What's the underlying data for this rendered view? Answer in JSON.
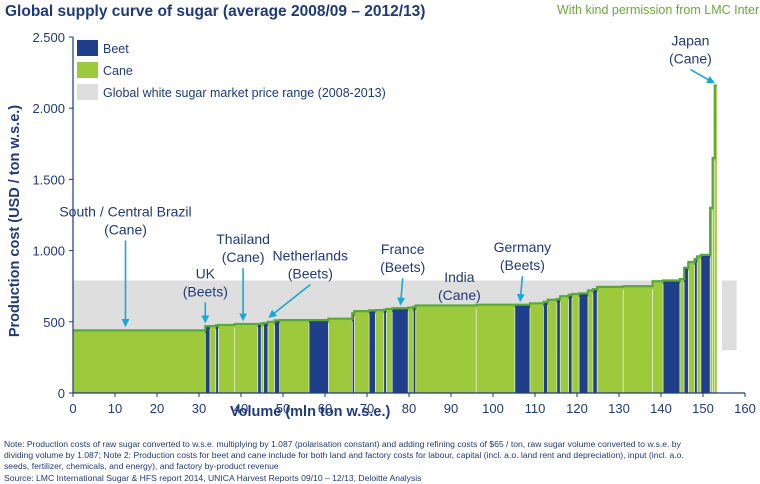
{
  "chart_data": {
    "type": "bar",
    "subtype": "supply-curve",
    "title": "Global supply curve of sugar (average 2008/09 – 2012/13)",
    "permission": "With kind permission from LMC International",
    "xlabel": "Volume (mln ton w.s.e.)",
    "ylabel": "Production cost (USD / ton w.s.e.)",
    "xlim": [
      0,
      160
    ],
    "ylim": [
      0,
      2500
    ],
    "x_ticks": [
      0,
      10,
      20,
      30,
      40,
      50,
      60,
      70,
      80,
      90,
      100,
      110,
      120,
      130,
      140,
      150,
      160
    ],
    "y_ticks": [
      0,
      500,
      1000,
      1500,
      2000,
      2500
    ],
    "y_tick_labels": [
      "0",
      "500",
      "1.000",
      "1.500",
      "2.000",
      "2.500"
    ],
    "price_range": {
      "label": "Global white sugar market price range (2008-2013)",
      "low": 300,
      "high": 790
    },
    "colors": {
      "beet": "#1f3f8a",
      "cane": "#9dc93c",
      "price_band": "#dedede",
      "curve": "#5aa83c",
      "text": "#1f3a7a",
      "permission": "#6aa83a"
    },
    "legend": [
      {
        "key": "beet",
        "label": "Beet"
      },
      {
        "key": "cane",
        "label": "Cane"
      },
      {
        "key": "price_band",
        "label": "Global white sugar market price range (2008-2013)"
      }
    ],
    "segments": [
      {
        "start": 0,
        "end": 31.5,
        "cost": 440,
        "type": "cane"
      },
      {
        "start": 31.5,
        "end": 32.6,
        "cost": 470,
        "type": "beet"
      },
      {
        "start": 32.6,
        "end": 34,
        "cost": 470,
        "type": "cane"
      },
      {
        "start": 34,
        "end": 34.6,
        "cost": 475,
        "type": "beet"
      },
      {
        "start": 34.6,
        "end": 38.5,
        "cost": 478,
        "type": "cane"
      },
      {
        "start": 38.5,
        "end": 44,
        "cost": 485,
        "type": "cane"
      },
      {
        "start": 44,
        "end": 44.8,
        "cost": 485,
        "type": "beet"
      },
      {
        "start": 44.8,
        "end": 45.4,
        "cost": 488,
        "type": "cane"
      },
      {
        "start": 45.4,
        "end": 46.4,
        "cost": 492,
        "type": "beet"
      },
      {
        "start": 46.4,
        "end": 48,
        "cost": 500,
        "type": "cane"
      },
      {
        "start": 48,
        "end": 49.2,
        "cost": 510,
        "type": "beet"
      },
      {
        "start": 49.2,
        "end": 56.2,
        "cost": 512,
        "type": "cane"
      },
      {
        "start": 56.2,
        "end": 60.8,
        "cost": 512,
        "type": "beet"
      },
      {
        "start": 60.8,
        "end": 66.5,
        "cost": 522,
        "type": "cane"
      },
      {
        "start": 66.5,
        "end": 67,
        "cost": 560,
        "type": "beet"
      },
      {
        "start": 67,
        "end": 70.5,
        "cost": 575,
        "type": "cane"
      },
      {
        "start": 70.5,
        "end": 72,
        "cost": 580,
        "type": "beet"
      },
      {
        "start": 72,
        "end": 74,
        "cost": 582,
        "type": "cane"
      },
      {
        "start": 74,
        "end": 74.6,
        "cost": 585,
        "type": "beet"
      },
      {
        "start": 74.6,
        "end": 76,
        "cost": 590,
        "type": "cane"
      },
      {
        "start": 76,
        "end": 79.8,
        "cost": 595,
        "type": "beet"
      },
      {
        "start": 79.8,
        "end": 81,
        "cost": 600,
        "type": "cane"
      },
      {
        "start": 81,
        "end": 81.6,
        "cost": 605,
        "type": "beet"
      },
      {
        "start": 81.6,
        "end": 96,
        "cost": 615,
        "type": "cane"
      },
      {
        "start": 96,
        "end": 105.2,
        "cost": 620,
        "type": "cane"
      },
      {
        "start": 105.2,
        "end": 108.8,
        "cost": 620,
        "type": "beet"
      },
      {
        "start": 108.8,
        "end": 112,
        "cost": 630,
        "type": "cane"
      },
      {
        "start": 112,
        "end": 113,
        "cost": 640,
        "type": "beet"
      },
      {
        "start": 113,
        "end": 115.2,
        "cost": 655,
        "type": "cane"
      },
      {
        "start": 115.2,
        "end": 116,
        "cost": 660,
        "type": "beet"
      },
      {
        "start": 116,
        "end": 118,
        "cost": 680,
        "type": "cane"
      },
      {
        "start": 118,
        "end": 118.8,
        "cost": 690,
        "type": "beet"
      },
      {
        "start": 118.8,
        "end": 120.5,
        "cost": 695,
        "type": "cane"
      },
      {
        "start": 120.5,
        "end": 122.6,
        "cost": 700,
        "type": "beet"
      },
      {
        "start": 122.6,
        "end": 123.8,
        "cost": 720,
        "type": "cane"
      },
      {
        "start": 123.8,
        "end": 124.8,
        "cost": 730,
        "type": "beet"
      },
      {
        "start": 124.8,
        "end": 131,
        "cost": 745,
        "type": "cane"
      },
      {
        "start": 131,
        "end": 138,
        "cost": 750,
        "type": "cane"
      },
      {
        "start": 138,
        "end": 140.5,
        "cost": 785,
        "type": "cane"
      },
      {
        "start": 140.5,
        "end": 144.5,
        "cost": 790,
        "type": "beet"
      },
      {
        "start": 144.5,
        "end": 145.5,
        "cost": 800,
        "type": "cane"
      },
      {
        "start": 145.5,
        "end": 146.5,
        "cost": 880,
        "type": "beet"
      },
      {
        "start": 146.5,
        "end": 148,
        "cost": 920,
        "type": "cane"
      },
      {
        "start": 148,
        "end": 148.6,
        "cost": 940,
        "type": "beet"
      },
      {
        "start": 148.6,
        "end": 149.5,
        "cost": 960,
        "type": "cane"
      },
      {
        "start": 149.5,
        "end": 151.7,
        "cost": 970,
        "type": "beet"
      },
      {
        "start": 151.7,
        "end": 152.3,
        "cost": 1300,
        "type": "cane"
      },
      {
        "start": 152.3,
        "end": 152.8,
        "cost": 1650,
        "type": "cane"
      },
      {
        "start": 152.8,
        "end": 153.3,
        "cost": 2160,
        "type": "cane"
      }
    ],
    "annotations": [
      {
        "lines": [
          "South / Central Brazil",
          "(Cane)"
        ],
        "x": 12.5,
        "y": 1240,
        "arrow": [
          12.5,
          475
        ]
      },
      {
        "lines": [
          "UK",
          "(Beets)"
        ],
        "x": 31.5,
        "y": 805,
        "arrow": [
          31.5,
          500
        ]
      },
      {
        "lines": [
          "Thailand",
          "(Cane)"
        ],
        "x": 40.5,
        "y": 1045,
        "arrow": [
          40.5,
          515
        ]
      },
      {
        "lines": [
          "Netherlands",
          "(Beets)"
        ],
        "x": 56.5,
        "y": 930,
        "arrow": [
          46.8,
          535
        ]
      },
      {
        "lines": [
          "France",
          "(Beets)"
        ],
        "x": 78.5,
        "y": 975,
        "arrow": [
          78,
          625
        ]
      },
      {
        "lines": [
          "India",
          "(Cane)"
        ],
        "x": 92,
        "y": 780,
        "arrow": null
      },
      {
        "lines": [
          "Germany",
          "(Beets)"
        ],
        "x": 107,
        "y": 990,
        "arrow": [
          106.5,
          650
        ]
      },
      {
        "lines": [
          "Japan",
          "(Cane)"
        ],
        "x": 147,
        "y": 2440,
        "arrow": [
          152.5,
          2180
        ]
      }
    ],
    "notes": [
      "Note: Production costs of raw sugar converted to w.s.e. multiplying by 1.087 (polarisation constant) and adding refining costs of $65 / ton, raw sugar volume converted to w.s.e. by",
      "dividing volume by 1.087; Note 2: Production costs for beet and cane include for both land and factory costs for labour, capital (incl. a.o. land rent and depreciation), input (incl. a.o.",
      "seeds, fertilizer, chemicals, and  energy), and factory  by-product revenue",
      "Source: LMC International Sugar & HFS report 2014, UNICA Harvest Reports 09/10 – 12/13, Deloitte Analysis"
    ]
  }
}
